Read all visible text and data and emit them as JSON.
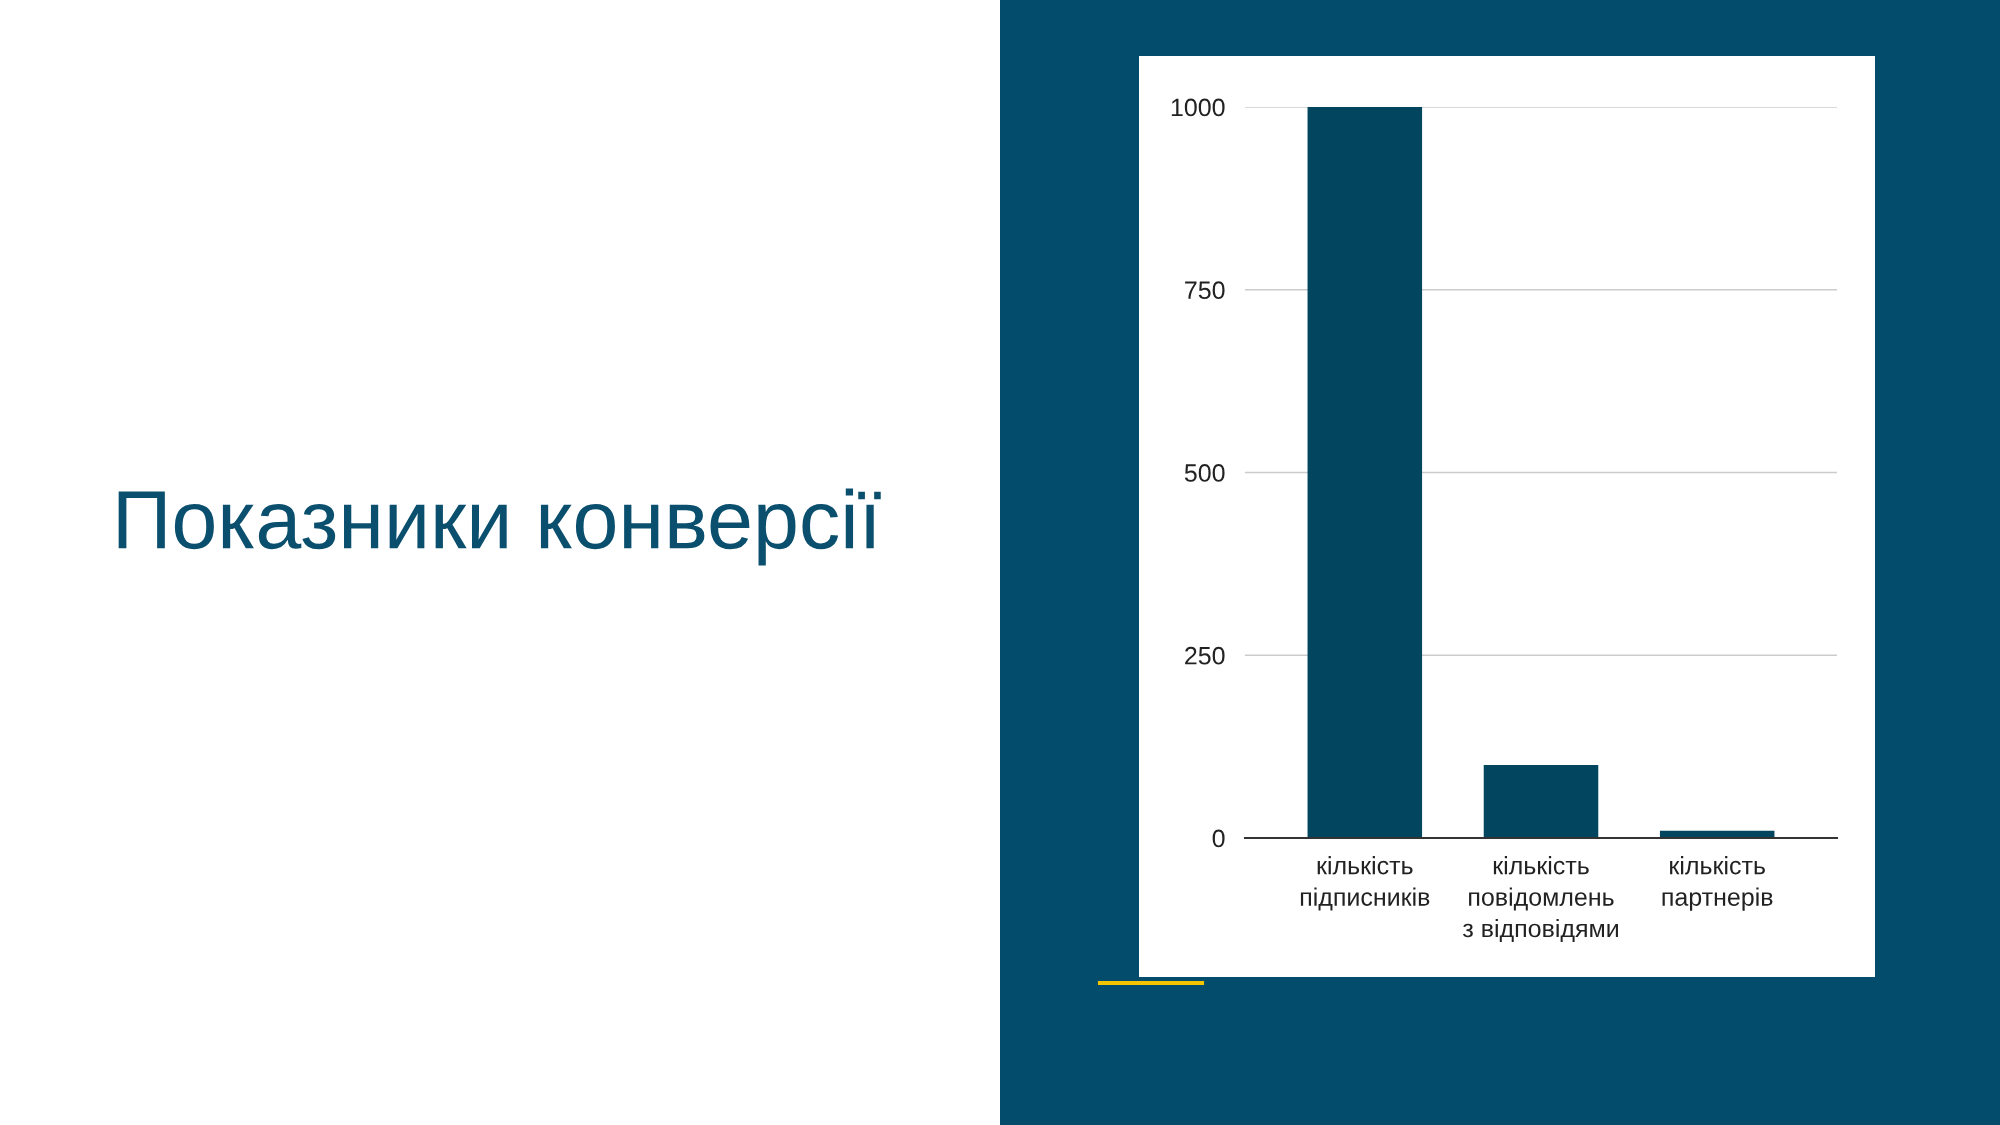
{
  "chart_data": {
    "type": "bar",
    "title": "Показники конверсії",
    "categories": [
      "кількість\nпідписників",
      "кількість\nповідомлень\nз відповідями",
      "кількість\nпартнерів"
    ],
    "values": [
      1000,
      100,
      10
    ],
    "color": "#02455f",
    "ylim": [
      0,
      1000
    ],
    "yticks": [
      0,
      250,
      500,
      750,
      1000
    ],
    "grid": "y"
  }
}
